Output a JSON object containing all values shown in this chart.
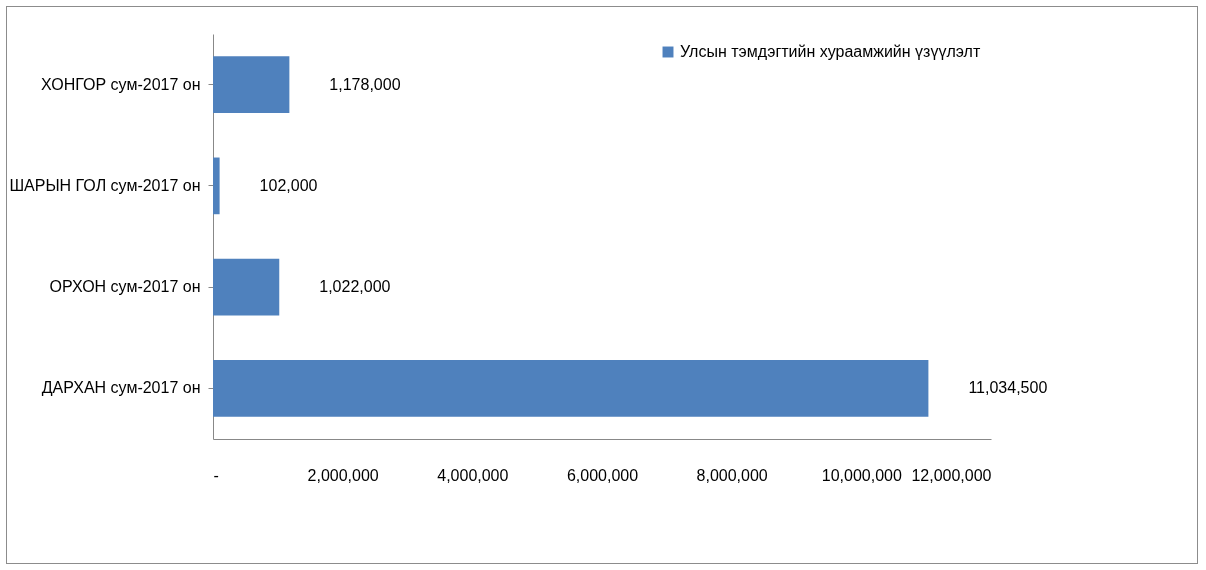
{
  "chart_data": {
    "type": "bar",
    "orientation": "horizontal",
    "categories": [
      "ХОНГОР сум-2017 он",
      "ШАРЫН ГОЛ сум-2017 он",
      "ОРХОН сум-2017 он",
      "ДАРХАН сум-2017 он"
    ],
    "series": [
      {
        "name": "Улсын тэмдэгтийн хураамжийн үзүүлэлт",
        "color": "#4f81bd",
        "values": [
          1178000,
          102000,
          1022000,
          11034500
        ],
        "value_labels": [
          "1,178,000",
          "102,000",
          "1,022,000",
          "11,034,500"
        ]
      }
    ],
    "xlim": [
      0,
      12000000
    ],
    "xticks": [
      {
        "value": 0,
        "label": "-"
      },
      {
        "value": 2000000,
        "label": "2,000,000"
      },
      {
        "value": 4000000,
        "label": "4,000,000"
      },
      {
        "value": 6000000,
        "label": "6,000,000"
      },
      {
        "value": 8000000,
        "label": "8,000,000"
      },
      {
        "value": 10000000,
        "label": "10,000,000"
      },
      {
        "value": 12000000,
        "label": "12,000,000"
      }
    ],
    "legend": "top right",
    "grid": false
  }
}
